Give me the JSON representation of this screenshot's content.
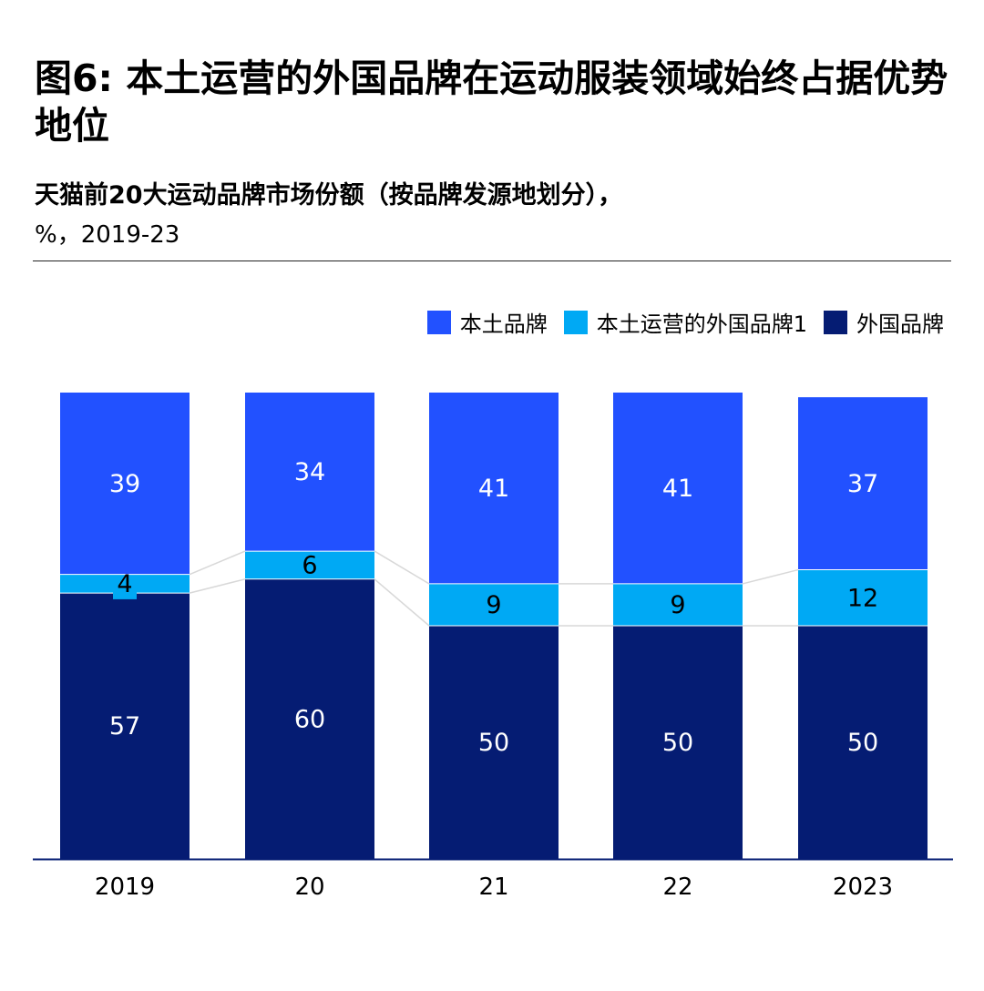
{
  "header": {
    "title": "图6: 本土运营的外国品牌在运动服装领域始终占据优势地位",
    "subtitle": "天猫前20大运动品牌市场份额（按品牌发源地划分），",
    "subtitle_units": "%，2019-23"
  },
  "colors": {
    "domestic": "#2251FF",
    "local_foreign": "#00A9F4",
    "foreign": "#051C73",
    "connector": "#D8D8D8",
    "axis": "#051C73"
  },
  "chart_data": {
    "type": "bar",
    "stacked": true,
    "categories": [
      "2019",
      "20",
      "21",
      "22",
      "2023"
    ],
    "series": [
      {
        "name": "外国品牌",
        "key": "foreign",
        "values": [
          57,
          60,
          50,
          50,
          50
        ]
      },
      {
        "name": "本土运营的外国品牌1",
        "key": "local_foreign",
        "values": [
          4,
          6,
          9,
          9,
          12
        ]
      },
      {
        "name": "本土品牌",
        "key": "domestic",
        "values": [
          39,
          34,
          41,
          41,
          37
        ]
      }
    ],
    "ylim": [
      0,
      100
    ],
    "legend_position": "top-right",
    "legend_order": [
      "本土品牌",
      "本土运营的外国品牌1",
      "外国品牌"
    ],
    "grid": false
  }
}
